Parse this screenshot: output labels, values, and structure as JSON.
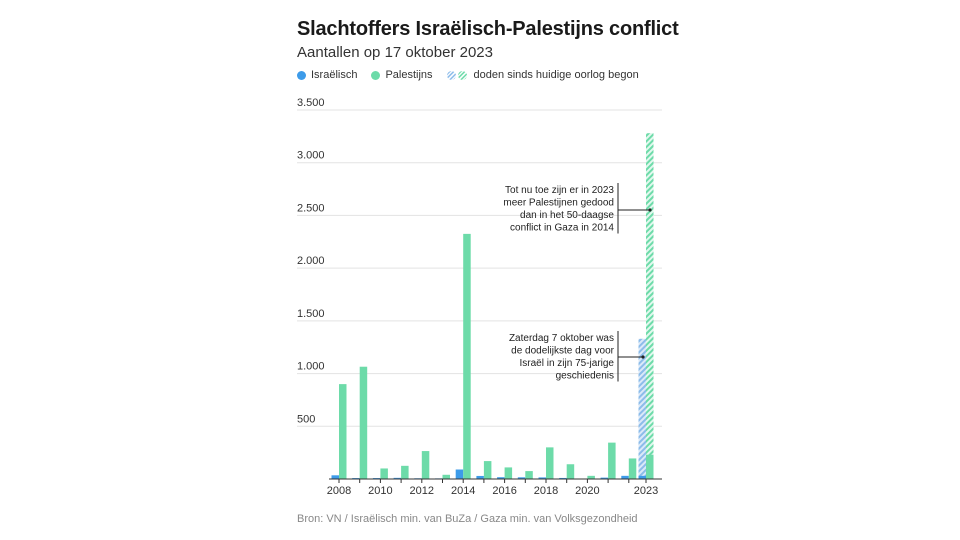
{
  "header": {
    "title": "Slachtoffers Israëlisch-Palestijns conflict",
    "subtitle": "Aantallen op 17 oktober 2023"
  },
  "legend": {
    "israeli": "Israëlisch",
    "palestinian": "Palestijns",
    "current_war": "doden sinds huidige oorlog begon"
  },
  "colors": {
    "israeli": "#3d9be9",
    "palestinian": "#6ddba9",
    "israeli_hatch": "#8cbcea",
    "palestinian_hatch": "#6ddba9",
    "grid": "#e3e3e3"
  },
  "footer": {
    "source": "Bron: VN / Israëlisch min. van BuZa / Gaza min. van Volksgezondheid"
  },
  "chart_data": {
    "type": "bar",
    "title": "Slachtoffers Israëlisch-Palestijns conflict",
    "subtitle": "Aantallen op 17 oktober 2023",
    "xlabel": "",
    "ylabel": "",
    "ylim": [
      0,
      3500
    ],
    "yticks": [
      500,
      1000,
      1500,
      2000,
      2500,
      3000,
      3500
    ],
    "ytick_labels": [
      "500",
      "1.000",
      "1.500",
      "2.000",
      "2.500",
      "3.000",
      "3.500"
    ],
    "grid": true,
    "categories": [
      "2008",
      "2009",
      "2010",
      "2011",
      "2012",
      "2013",
      "2014",
      "2015",
      "2016",
      "2017",
      "2018",
      "2019",
      "2020",
      "2021",
      "2022",
      "2023"
    ],
    "xtick_labels": [
      "2008",
      "",
      "2010",
      "",
      "2012",
      "",
      "2014",
      "",
      "2016",
      "",
      "2018",
      "",
      "2020",
      "",
      "",
      "2023"
    ],
    "series": [
      {
        "name": "Israëlisch",
        "values": [
          35,
          9,
          9,
          11,
          7,
          6,
          90,
          29,
          17,
          16,
          15,
          10,
          3,
          13,
          30,
          30
        ]
      },
      {
        "name": "Palestijns",
        "values": [
          900,
          1065,
          100,
          125,
          265,
          40,
          2325,
          170,
          110,
          75,
          300,
          140,
          30,
          345,
          195,
          230
        ]
      }
    ],
    "current_war_2023": {
      "Israëlisch": 1330,
      "Palestijns": 3280
    },
    "annotations": [
      {
        "target": "2023 Palestijns",
        "lines": [
          "Tot nu toe zijn er in 2023",
          "meer Palestijnen gedood",
          "dan in het 50-daagse",
          "conflict in Gaza in 2014"
        ]
      },
      {
        "target": "2023 Israëlisch",
        "lines": [
          "Zaterdag 7 oktober was",
          "de dodelijkste dag voor",
          "Israël in zijn 75-jarige",
          "geschiedenis"
        ]
      }
    ]
  }
}
